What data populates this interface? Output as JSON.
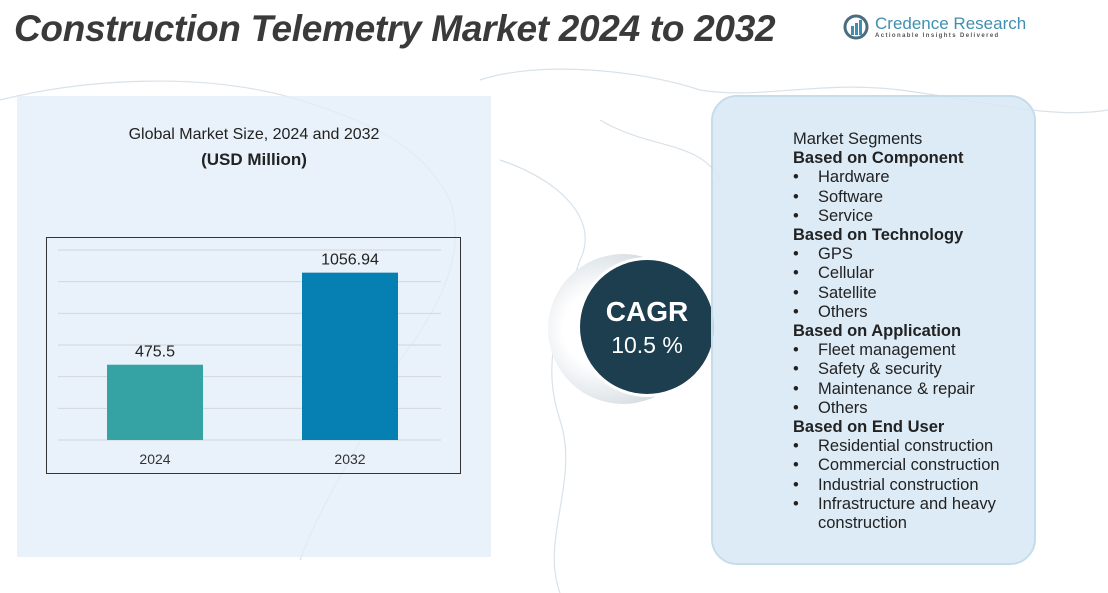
{
  "title": "Construction Telemetry Market 2024 to 2032",
  "logo": {
    "name": "Credence Research",
    "tagline": "Actionable Insights Delivered"
  },
  "chart_data": {
    "type": "bar",
    "title": "Global Market Size,  2024 and 2032",
    "subtitle": "(USD Million)",
    "categories": [
      "2024",
      "2032"
    ],
    "values": [
      475.5,
      1056.94
    ],
    "data_labels": [
      "475.5",
      "1056.94"
    ],
    "colors": [
      "#35a3a3",
      "#0680b3"
    ],
    "ylim": [
      0,
      1200
    ],
    "grid": true
  },
  "cagr": {
    "label": "CAGR",
    "value": "10.5 %"
  },
  "segments": {
    "heading": "Market Segments",
    "groups": [
      {
        "title": "Based on Component",
        "items": [
          "Hardware",
          "Software",
          "Service"
        ]
      },
      {
        "title": "Based on Technology",
        "items": [
          "GPS",
          "Cellular",
          "Satellite",
          "Others"
        ]
      },
      {
        "title": "Based on Application",
        "items": [
          "Fleet management",
          "Safety & security",
          "Maintenance & repair",
          "Others"
        ]
      },
      {
        "title": "Based on End User",
        "items": [
          "Residential construction",
          "Commercial construction",
          "Industrial construction",
          "Infrastructure and heavy construction"
        ]
      }
    ]
  }
}
